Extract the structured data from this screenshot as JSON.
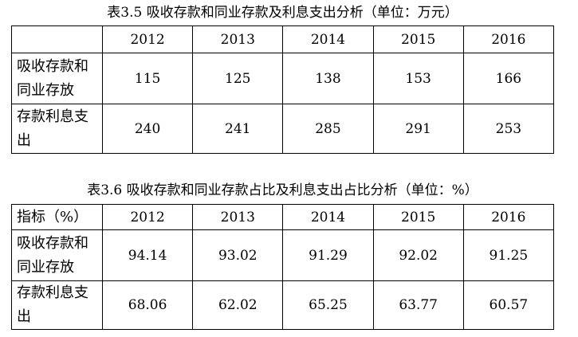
{
  "tables": [
    {
      "title": "表3.5 吸收存款和同业存款及利息支出分析（单位：万元）",
      "columns": [
        "2012",
        "2013",
        "2014",
        "2015",
        "2016"
      ],
      "rows": [
        {
          "label": "吸收存款和同业存放",
          "values": [
            115,
            125,
            138,
            153,
            166
          ]
        },
        {
          "label": "存款利息支出",
          "values": [
            240,
            241,
            285,
            291,
            253
          ]
        }
      ]
    },
    {
      "title": "表3.6 吸收存款和同业存款占比及利息支出占比分析（单位：%）",
      "header_label": "指标（%）",
      "columns": [
        "2012",
        "2013",
        "2014",
        "2015",
        "2016"
      ],
      "rows": [
        {
          "label": "吸收存款和同业存放",
          "values": [
            94.14,
            93.02,
            91.29,
            92.02,
            91.25
          ]
        },
        {
          "label": "存款利息支出",
          "values": [
            68.06,
            62.02,
            65.25,
            63.77,
            60.57
          ]
        }
      ]
    }
  ]
}
